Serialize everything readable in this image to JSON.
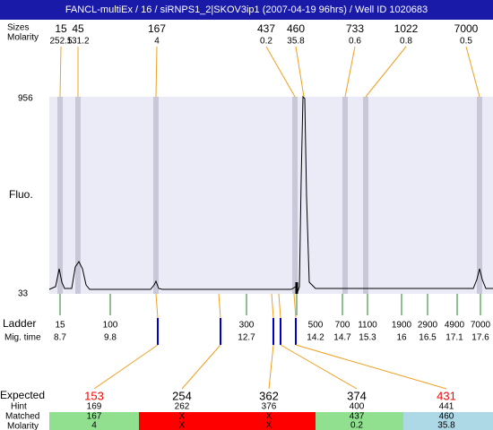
{
  "header": {
    "title": "FANCL-multiEx / 16 / siRNPS1_2|SKOV3ip1 (2007-04-19 96hrs) / Well ID 1020683"
  },
  "peaks": {
    "size_label": "Sizes",
    "molarity_label": "Molarity",
    "sizes": [
      15,
      45,
      167,
      437,
      460,
      733,
      1022,
      7000
    ],
    "molarity": [
      252.5,
      131.2,
      4,
      0.2,
      35.8,
      0.6,
      0.8,
      0.5
    ]
  },
  "plot": {
    "y_label": "Fluo.",
    "y_top": 956,
    "y_bottom": 33
  },
  "ladder": {
    "label": "Ladder",
    "time_label": "Mig. time",
    "sizes": [
      15,
      100,
      300,
      500,
      700,
      1100,
      1900,
      2900,
      4900,
      7000
    ],
    "times": [
      8.7,
      9.8,
      12.7,
      14.2,
      14.7,
      15.3,
      16,
      16.5,
      17.1,
      17.6
    ]
  },
  "expected": {
    "label": "Expected",
    "hint_label": "Hint",
    "matched_label": "Matched",
    "molarity_label": "Molarity",
    "rows": [
      {
        "expected": 153,
        "hint": 169,
        "matched": 167,
        "molarity": 4,
        "color": "#ff0000",
        "bg": "#90e090"
      },
      {
        "expected": 254,
        "hint": 262,
        "matched": "X",
        "molarity": "X",
        "color": "#000000",
        "bg": "#ff0000"
      },
      {
        "expected": 362,
        "hint": 376,
        "matched": "X",
        "molarity": "X",
        "color": "#000000",
        "bg": "#ff0000"
      },
      {
        "expected": 374,
        "hint": 400,
        "matched": 437,
        "molarity": 0.2,
        "color": "#000000",
        "bg": "#90e090"
      },
      {
        "expected": 431,
        "hint": 441,
        "matched": 460,
        "molarity": 35.8,
        "color": "#ff0000",
        "bg": "#add8e6"
      }
    ]
  }
}
